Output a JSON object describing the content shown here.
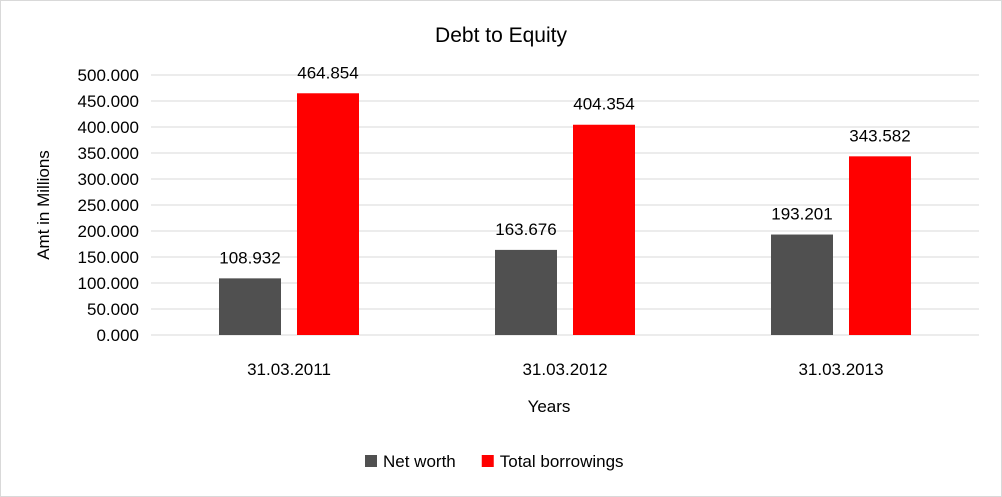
{
  "chart_data": {
    "type": "bar",
    "title": "Debt to Equity",
    "xlabel": "Years",
    "ylabel": "Amt in Millions",
    "categories": [
      "31.03.2011",
      "31.03.2012",
      "31.03.2013"
    ],
    "series": [
      {
        "name": "Net worth",
        "values": [
          108.932,
          163.676,
          193.201
        ],
        "color": "#505050"
      },
      {
        "name": "Total borrowings",
        "values": [
          464.854,
          404.354,
          343.582
        ],
        "color": "#ff0000"
      }
    ],
    "ylim": [
      0,
      500
    ],
    "y_ticks": [
      "0.000",
      "50.000",
      "100.000",
      "150.000",
      "200.000",
      "250.000",
      "300.000",
      "350.000",
      "400.000",
      "450.000",
      "500.000"
    ],
    "data_labels": [
      [
        "108.932",
        "163.676",
        "193.201"
      ],
      [
        "464.854",
        "404.354",
        "343.582"
      ]
    ],
    "grid": true,
    "legend_position": "bottom",
    "gridline_color": "#d9d9d9"
  }
}
